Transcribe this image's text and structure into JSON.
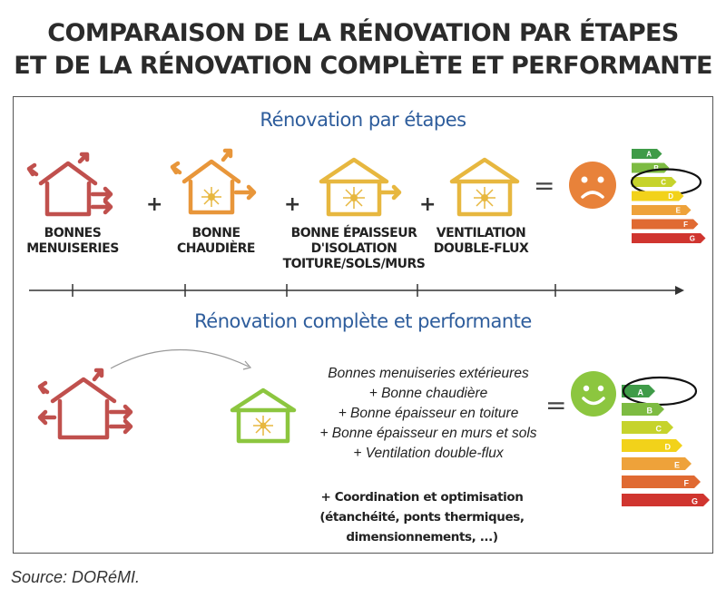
{
  "title": {
    "line1": "COMPARAISON DE LA RÉNOVATION PAR ÉTAPES",
    "line2": "ET DE LA RÉNOVATION COMPLÈTE ET PERFORMANTE"
  },
  "steps_section": {
    "heading": "Rénovation par étapes",
    "steps": [
      {
        "line1": "BONNES",
        "line2": "MENUISERIES",
        "line3": ""
      },
      {
        "line1": "BONNE",
        "line2": "CHAUDIÈRE",
        "line3": ""
      },
      {
        "line1": "BONNE ÉPAISSEUR",
        "line2": "D'ISOLATION",
        "line3": "TOITURE/SOLS/MURS"
      },
      {
        "line1": "VENTILATION",
        "line2": "DOUBLE-FLUX",
        "line3": ""
      }
    ],
    "plus": "+",
    "equals": "=",
    "result_mood": "sad",
    "highlighted_class": "C"
  },
  "complete_section": {
    "heading": "Rénovation complète et performante",
    "list": [
      "Bonnes menuiseries extérieures",
      "+ Bonne chaudière",
      "+ Bonne épaisseur en toiture",
      "+ Bonne épaisseur en murs et sols",
      "+ Ventilation double-flux"
    ],
    "coordination": [
      "+ Coordination et optimisation",
      "(étanchéité, ponts thermiques,",
      "dimensionnements, ...)"
    ],
    "equals": "=",
    "result_mood": "happy",
    "highlighted_class": "A"
  },
  "energy_classes": [
    "A",
    "B",
    "C",
    "D",
    "E",
    "F",
    "G"
  ],
  "colors": {
    "section_heading": "#2e5d9c",
    "house_red": "#c0504d",
    "house_orange": "#e8963a",
    "house_yellow": "#e7b73f",
    "house_green": "#8cc63f",
    "face_sad": "#e8823a",
    "face_happy": "#8cc63f",
    "class_colors": [
      "#3f9b48",
      "#7dbb42",
      "#c6d32c",
      "#f2d21a",
      "#eea23a",
      "#e06a32",
      "#d0352f"
    ]
  },
  "source": "Source: DORéMI."
}
